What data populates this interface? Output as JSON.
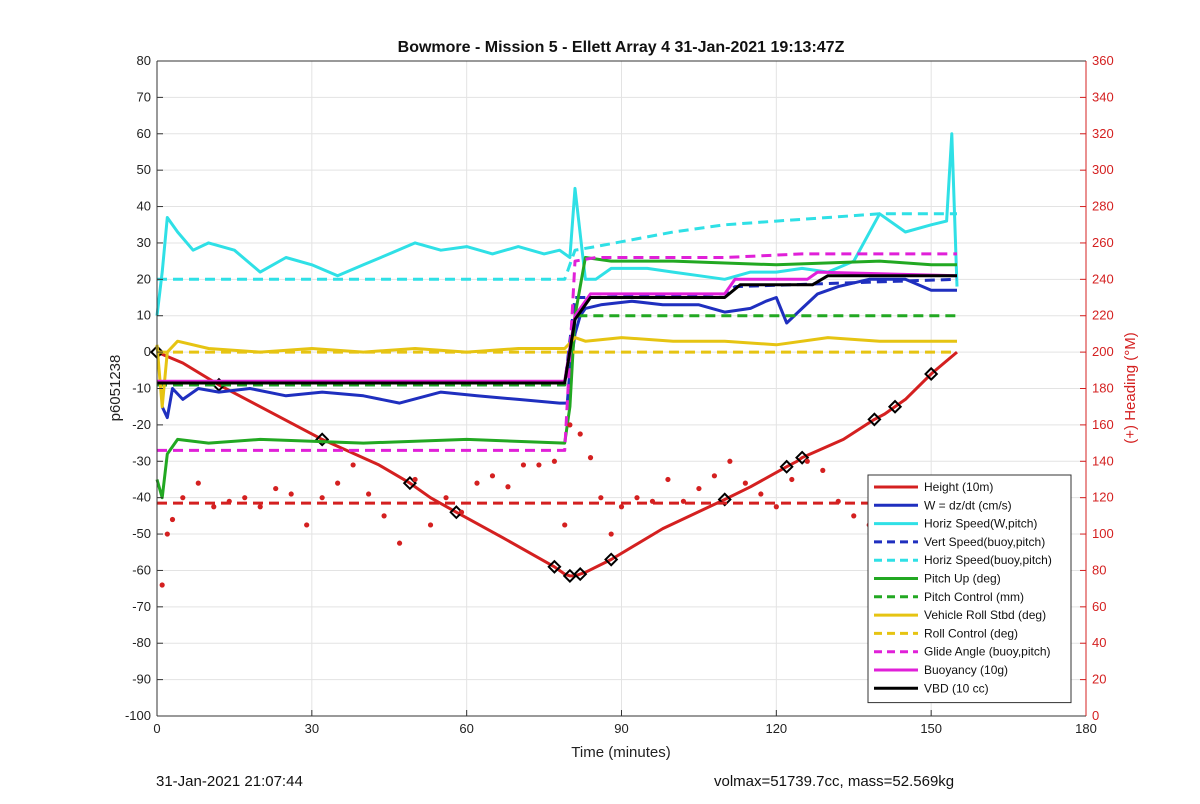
{
  "footer": {
    "left": "31-Jan-2021 21:07:44",
    "right": "volmax=51739.7cc, mass=52.569kg"
  },
  "chart_data": {
    "type": "line",
    "title": "Bowmore - Mission 5 - Ellett Array 4 31-Jan-2021 19:13:47Z",
    "xlabel": "Time (minutes)",
    "ylabel": "p6051238",
    "y2label": "(+) Heading (°M)",
    "xlim": [
      0,
      180
    ],
    "ylim": [
      -100,
      80
    ],
    "y2lim": [
      0,
      360
    ],
    "xticks": [
      "0",
      "30",
      "60",
      "90",
      "120",
      "150",
      "180"
    ],
    "yticks": [
      "80",
      "70",
      "60",
      "50",
      "40",
      "30",
      "20",
      "10",
      "0",
      "-10",
      "-20",
      "-30",
      "-40",
      "-50",
      "-60",
      "-70",
      "-80",
      "-90",
      "-100"
    ],
    "y2ticks": [
      "360",
      "340",
      "320",
      "300",
      "280",
      "260",
      "240",
      "220",
      "200",
      "180",
      "160",
      "140",
      "120",
      "100",
      "80",
      "60",
      "40",
      "20",
      "0"
    ],
    "grid": true,
    "legend_position": "bottom-right",
    "colors": {
      "red": "#d42020",
      "blue": "#1f2fbf",
      "cyan": "#2fe0e6",
      "green": "#22a822",
      "gold": "#e6c412",
      "magenta": "#e020d8",
      "black": "#000000"
    },
    "series": [
      {
        "name": "Height (10m)",
        "color": "#d42020",
        "dash": false,
        "x": [
          0,
          5,
          12,
          20,
          32,
          43,
          49,
          53,
          58,
          67,
          77,
          79,
          80,
          81,
          82,
          83,
          88,
          98,
          110,
          115,
          122,
          124,
          125,
          133,
          139,
          141,
          143,
          145,
          150,
          155
        ],
        "y": [
          0,
          -3,
          -9,
          -15,
          -24,
          -31,
          -36,
          -40,
          -44,
          -51,
          -59,
          -61,
          -61.5,
          -61.5,
          -61,
          -60.5,
          -57,
          -48.5,
          -40.5,
          -37,
          -31.5,
          -30,
          -29,
          -24,
          -18.5,
          -17,
          -15,
          -13,
          -6,
          0
        ]
      },
      {
        "name": "W = dz/dt (cm/s)",
        "color": "#1f2fbf",
        "dash": false,
        "x": [
          1,
          2,
          3,
          5,
          8,
          12,
          18,
          25,
          32,
          40,
          47,
          55,
          62,
          70,
          78,
          79.5,
          80,
          81,
          82,
          83,
          86,
          92,
          98,
          105,
          110,
          115,
          118,
          120,
          122,
          125,
          128,
          132,
          138,
          145,
          150,
          155
        ],
        "y": [
          -15,
          -18,
          -10,
          -13,
          -10,
          -11,
          -10,
          -12,
          -11,
          -12,
          -14,
          -11,
          -12,
          -13,
          -14,
          -14,
          -5,
          5,
          10,
          12,
          13,
          14,
          13,
          13,
          11,
          12,
          14,
          15,
          8,
          12,
          16,
          18,
          20,
          20,
          17,
          17
        ]
      },
      {
        "name": "Horiz Speed(W,pitch)",
        "color": "#2fe0e6",
        "dash": false,
        "x": [
          0,
          1,
          2,
          4,
          7,
          10,
          15,
          20,
          25,
          30,
          35,
          40,
          45,
          50,
          55,
          60,
          65,
          70,
          75,
          78,
          80,
          81,
          83,
          85,
          88,
          95,
          100,
          105,
          110,
          115,
          120,
          125,
          130,
          135,
          140,
          145,
          150,
          153,
          154,
          155
        ],
        "y": [
          10,
          22,
          37,
          33,
          28,
          30,
          28,
          22,
          26,
          24,
          21,
          24,
          27,
          30,
          28,
          29,
          27,
          29,
          27,
          28,
          26,
          45,
          20,
          20,
          23,
          23,
          22,
          21,
          20,
          22,
          22,
          23,
          22,
          25,
          38,
          33,
          35,
          36,
          60,
          18
        ]
      },
      {
        "name": "Vert Speed(buoy,pitch)",
        "color": "#1f2fbf",
        "dash": true,
        "x": [
          0,
          79,
          81,
          85,
          110,
          112,
          155
        ],
        "y": [
          -9,
          -9,
          15,
          15,
          16,
          18,
          20
        ]
      },
      {
        "name": "Horiz Speed(buoy,pitch)",
        "color": "#2fe0e6",
        "dash": true,
        "x": [
          0,
          79,
          81,
          85,
          100,
          110,
          120,
          130,
          140,
          155
        ],
        "y": [
          20,
          20,
          28,
          29,
          33,
          35,
          36,
          37,
          38,
          38
        ]
      },
      {
        "name": "Pitch Up (deg)",
        "color": "#22a822",
        "dash": false,
        "x": [
          0,
          1,
          2,
          4,
          10,
          20,
          40,
          60,
          79,
          80,
          81,
          83,
          88,
          100,
          120,
          140,
          150,
          155
        ],
        "y": [
          -35,
          -40,
          -28,
          -24,
          -25,
          -24,
          -25,
          -24,
          -25,
          -15,
          10,
          26,
          25,
          25,
          24,
          25,
          24,
          24
        ]
      },
      {
        "name": "Pitch Control (mm)",
        "color": "#22a822",
        "dash": true,
        "x": [
          0,
          79,
          81,
          85,
          155
        ],
        "y": [
          -9,
          -9,
          10,
          10,
          10
        ]
      },
      {
        "name": "Vehicle Roll Stbd (deg)",
        "color": "#e6c412",
        "dash": false,
        "x": [
          0,
          1,
          2,
          4,
          10,
          20,
          30,
          40,
          50,
          60,
          70,
          79,
          81,
          83,
          90,
          100,
          110,
          120,
          130,
          140,
          150,
          155
        ],
        "y": [
          2,
          -15,
          0,
          3,
          1,
          0,
          1,
          0,
          1,
          0,
          1,
          1,
          4,
          3,
          4,
          3,
          3,
          2,
          4,
          3,
          3,
          3
        ]
      },
      {
        "name": "Roll Control (deg)",
        "color": "#e6c412",
        "dash": true,
        "x": [
          0,
          79,
          81,
          155
        ],
        "y": [
          0,
          0,
          0,
          0
        ]
      },
      {
        "name": "Glide Angle (buoy,pitch)",
        "color": "#e020d8",
        "dash": true,
        "x": [
          0,
          79,
          81,
          85,
          110,
          125,
          155
        ],
        "y": [
          -27,
          -27,
          25,
          26,
          26,
          27,
          27
        ]
      },
      {
        "name": "Buoyancy (10g)",
        "color": "#e020d8",
        "dash": false,
        "x": [
          0,
          79,
          81,
          84,
          110,
          112,
          126,
          128,
          155
        ],
        "y": [
          -8,
          -8,
          10,
          16,
          16,
          20,
          20,
          22,
          21
        ]
      },
      {
        "name": "VBD (10 cc)",
        "color": "#000000",
        "dash": false,
        "x": [
          0,
          79,
          81,
          84,
          110,
          113,
          127,
          130,
          155
        ],
        "y": [
          -8.5,
          -8.5,
          9,
          15,
          15,
          18.5,
          18.5,
          21,
          21
        ]
      },
      {
        "name": "",
        "axis": "right",
        "color": "#d42020",
        "dash": true,
        "x": [
          0,
          155
        ],
        "y": [
          117,
          117
        ]
      },
      {
        "name": "",
        "axis": "right",
        "color": "#d42020",
        "scatter": true,
        "x": [
          1,
          2,
          3,
          5,
          8,
          11,
          14,
          17,
          20,
          23,
          26,
          29,
          32,
          35,
          38,
          41,
          44,
          47,
          50,
          53,
          56,
          59,
          62,
          65,
          68,
          71,
          74,
          77,
          79,
          80,
          82,
          84,
          86,
          88,
          90,
          93,
          96,
          99,
          102,
          105,
          108,
          111,
          114,
          117,
          120,
          123,
          126,
          129,
          132,
          135,
          138,
          141,
          144,
          147,
          150,
          153
        ],
        "y": [
          72,
          100,
          108,
          120,
          128,
          115,
          118,
          120,
          115,
          125,
          122,
          105,
          120,
          128,
          138,
          122,
          110,
          95,
          130,
          105,
          120,
          112,
          128,
          132,
          126,
          138,
          138,
          140,
          105,
          160,
          155,
          142,
          120,
          100,
          115,
          120,
          118,
          130,
          118,
          125,
          132,
          140,
          128,
          122,
          115,
          130,
          140,
          135,
          118,
          110,
          105,
          98,
          120,
          112,
          105,
          110
        ]
      }
    ]
  }
}
